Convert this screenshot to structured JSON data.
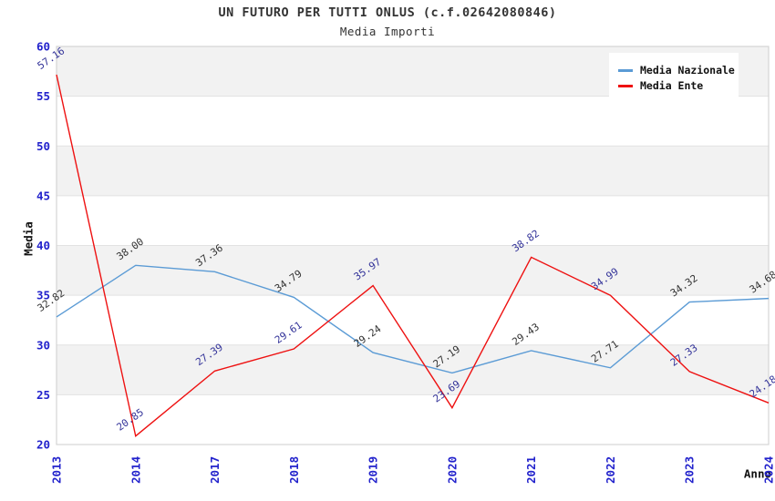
{
  "chart_data": {
    "type": "line",
    "title": "UN FUTURO PER TUTTI ONLUS (c.f.02642080846)",
    "subtitle": "Media Importi",
    "xlabel": "Anno",
    "ylabel": "Media",
    "categories": [
      "2013",
      "2014",
      "2017",
      "2018",
      "2019",
      "2020",
      "2021",
      "2022",
      "2023",
      "2024"
    ],
    "ylim": [
      20,
      60
    ],
    "ytick_step": 5,
    "legend_position": "top-right",
    "grid": "horizontal-bands",
    "band_colors": [
      "#f2f2f2",
      "#ffffff"
    ],
    "axis_tick_color": "#2222cc",
    "plot_border_color": "#d4d4d4",
    "series": [
      {
        "name": "Media Nazionale",
        "color": "#5B9BD5",
        "label_color": "#333333",
        "values": [
          32.82,
          38.0,
          37.36,
          34.79,
          29.24,
          27.19,
          29.43,
          27.71,
          34.32,
          34.68
        ]
      },
      {
        "name": "Media Ente",
        "color": "#EE1111",
        "label_color": "#333399",
        "values": [
          57.16,
          20.85,
          27.39,
          29.61,
          35.97,
          23.69,
          38.82,
          34.99,
          27.33,
          24.18
        ]
      }
    ]
  }
}
